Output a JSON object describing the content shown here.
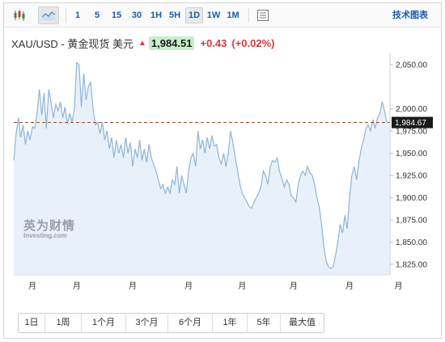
{
  "toolbar": {
    "intervals": [
      "1",
      "5",
      "15",
      "30",
      "1H",
      "5H",
      "1D",
      "1W",
      "1M"
    ],
    "active_interval": "1D",
    "tech_chart_label": "技术图表"
  },
  "quote": {
    "pair": "XAU/USD - 黄金现货 美元",
    "price": "1,984.51",
    "change": "+0.43",
    "change_pct": "(+0.02%)",
    "up_color": "#d23c3c"
  },
  "watermark": {
    "cn": "英为财情",
    "en": "Investing.com"
  },
  "ranges": [
    "1日",
    "1周",
    "1个月",
    "3个月",
    "6个月",
    "1年",
    "5年",
    "最大值"
  ],
  "chart_data": {
    "type": "area",
    "current_value": 1984.67,
    "current_label": "1,984.67",
    "y_ticks": [
      "2,050.00",
      "2,000.00",
      "1,975.00",
      "1,950.00",
      "1,925.00",
      "1,900.00",
      "1,875.00",
      "1,850.00",
      "1,825.00"
    ],
    "y_tick_values": [
      2050,
      2000,
      1975,
      1950,
      1925,
      1900,
      1875,
      1850,
      1825
    ],
    "ylim": [
      1813,
      2058
    ],
    "x_ticks": [
      "月",
      "月",
      "月",
      "月",
      "月",
      "月",
      "月",
      "月"
    ],
    "x_tick_index": [
      8,
      27,
      51,
      75,
      98,
      120,
      144,
      165
    ],
    "line_color": "#8fb5d4",
    "fill_color": "#e8f1fa",
    "current_line_color": "#9c4a2e",
    "values": [
      1942,
      1972,
      1990,
      1968,
      1982,
      1960,
      1975,
      1965,
      1980,
      1978,
      1995,
      2022,
      1993,
      2018,
      1978,
      2022,
      2008,
      1990,
      2005,
      1998,
      2008,
      1990,
      2002,
      1983,
      1995,
      1985,
      2000,
      2052,
      2050,
      2002,
      2040,
      2010,
      2025,
      2030,
      2000,
      1982,
      1985,
      1972,
      1985,
      1965,
      1975,
      1955,
      1968,
      1945,
      1965,
      1950,
      1960,
      1945,
      1968,
      1950,
      1962,
      1935,
      1955,
      1945,
      1965,
      1942,
      1955,
      1940,
      1960,
      1945,
      1938,
      1930,
      1920,
      1910,
      1915,
      1905,
      1912,
      1905,
      1920,
      1915,
      1935,
      1905,
      1925,
      1915,
      1905,
      1930,
      1945,
      1950,
      1935,
      1975,
      1955,
      1965,
      1950,
      1968,
      1955,
      1970,
      1958,
      1960,
      1945,
      1938,
      1950,
      1935,
      1950,
      1975,
      1962,
      1945,
      1930,
      1915,
      1905,
      1900,
      1895,
      1890,
      1888,
      1895,
      1900,
      1905,
      1912,
      1930,
      1925,
      1915,
      1935,
      1942,
      1940,
      1945,
      1930,
      1922,
      1912,
      1920,
      1915,
      1902,
      1900,
      1895,
      1915,
      1925,
      1930,
      1925,
      1935,
      1928,
      1925,
      1915,
      1900,
      1890,
      1870,
      1845,
      1828,
      1822,
      1820,
      1822,
      1835,
      1850,
      1870,
      1860,
      1880,
      1865,
      1900,
      1925,
      1935,
      1920,
      1940,
      1955,
      1965,
      1978,
      1982,
      1975,
      1988,
      1978,
      1990,
      1995,
      2008,
      1998,
      1985,
      1984.67
    ]
  }
}
